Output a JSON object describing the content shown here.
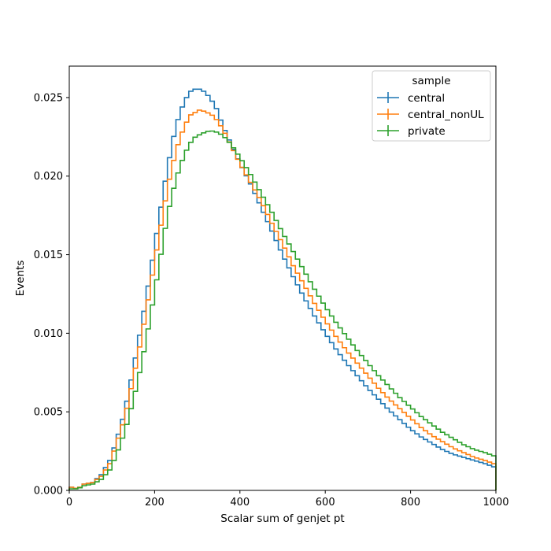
{
  "chart_data": {
    "type": "histogram-step",
    "xlabel": "Scalar sum of genjet pt",
    "ylabel": "Events",
    "xlim": [
      0,
      1000
    ],
    "ylim": [
      0,
      0.027
    ],
    "xticks": [
      0,
      200,
      400,
      600,
      800,
      1000
    ],
    "yticks": [
      0.0,
      0.005,
      0.01,
      0.015,
      0.02,
      0.025
    ],
    "ytick_labels": [
      "0.000",
      "0.005",
      "0.010",
      "0.015",
      "0.020",
      "0.025"
    ],
    "grid": false,
    "legend": {
      "title": "sample",
      "placement": "top-right"
    },
    "bin_width": 10,
    "series": [
      {
        "name": "central",
        "color": "#1f77b4",
        "knots": [
          [
            5,
            0.0002
          ],
          [
            20,
            0.0001
          ],
          [
            35,
            0.0004
          ],
          [
            55,
            0.0005
          ],
          [
            75,
            0.001
          ],
          [
            95,
            0.0019
          ],
          [
            110,
            0.0031
          ],
          [
            130,
            0.005
          ],
          [
            150,
            0.0077
          ],
          [
            170,
            0.0106
          ],
          [
            190,
            0.0138
          ],
          [
            210,
            0.0172
          ],
          [
            230,
            0.0205
          ],
          [
            250,
            0.0232
          ],
          [
            270,
            0.0248
          ],
          [
            285,
            0.0254
          ],
          [
            300,
            0.0256
          ],
          [
            315,
            0.0254
          ],
          [
            330,
            0.025
          ],
          [
            345,
            0.0243
          ],
          [
            360,
            0.0232
          ],
          [
            380,
            0.022
          ],
          [
            400,
            0.0208
          ],
          [
            425,
            0.0195
          ],
          [
            450,
            0.018
          ],
          [
            475,
            0.0165
          ],
          [
            500,
            0.015
          ],
          [
            525,
            0.0136
          ],
          [
            550,
            0.0123
          ],
          [
            575,
            0.0111
          ],
          [
            600,
            0.01
          ],
          [
            625,
            0.009
          ],
          [
            650,
            0.0081
          ],
          [
            675,
            0.0073
          ],
          [
            700,
            0.0065
          ],
          [
            725,
            0.0058
          ],
          [
            750,
            0.0051
          ],
          [
            775,
            0.0045
          ],
          [
            800,
            0.0039
          ],
          [
            825,
            0.0034
          ],
          [
            850,
            0.003
          ],
          [
            875,
            0.0026
          ],
          [
            900,
            0.0023
          ],
          [
            925,
            0.0021
          ],
          [
            950,
            0.0019
          ],
          [
            975,
            0.0017
          ],
          [
            995,
            0.0015
          ]
        ]
      },
      {
        "name": "central_nonUL",
        "color": "#ff7f0e",
        "knots": [
          [
            5,
            0.0002
          ],
          [
            20,
            0.0001
          ],
          [
            35,
            0.0004
          ],
          [
            55,
            0.0005
          ],
          [
            75,
            0.0009
          ],
          [
            95,
            0.0017
          ],
          [
            110,
            0.0029
          ],
          [
            130,
            0.0046
          ],
          [
            150,
            0.0071
          ],
          [
            170,
            0.0098
          ],
          [
            190,
            0.0129
          ],
          [
            210,
            0.0161
          ],
          [
            230,
            0.0192
          ],
          [
            250,
            0.0216
          ],
          [
            270,
            0.0232
          ],
          [
            285,
            0.0239
          ],
          [
            305,
            0.0242
          ],
          [
            320,
            0.0241
          ],
          [
            340,
            0.0238
          ],
          [
            360,
            0.023
          ],
          [
            380,
            0.0219
          ],
          [
            400,
            0.0208
          ],
          [
            425,
            0.0196
          ],
          [
            450,
            0.0184
          ],
          [
            475,
            0.017
          ],
          [
            500,
            0.0157
          ],
          [
            525,
            0.0143
          ],
          [
            550,
            0.0131
          ],
          [
            575,
            0.0119
          ],
          [
            600,
            0.0108
          ],
          [
            625,
            0.0098
          ],
          [
            650,
            0.0089
          ],
          [
            675,
            0.0081
          ],
          [
            700,
            0.0073
          ],
          [
            725,
            0.0065
          ],
          [
            750,
            0.0058
          ],
          [
            775,
            0.0052
          ],
          [
            800,
            0.0046
          ],
          [
            825,
            0.004
          ],
          [
            850,
            0.0035
          ],
          [
            875,
            0.0031
          ],
          [
            900,
            0.0027
          ],
          [
            925,
            0.0024
          ],
          [
            950,
            0.0021
          ],
          [
            975,
            0.0019
          ],
          [
            995,
            0.0017
          ]
        ]
      },
      {
        "name": "private",
        "color": "#2ca02c",
        "knots": [
          [
            5,
            0.0001
          ],
          [
            20,
            0.0001
          ],
          [
            35,
            0.0003
          ],
          [
            55,
            0.0004
          ],
          [
            75,
            0.0007
          ],
          [
            95,
            0.0013
          ],
          [
            110,
            0.0022
          ],
          [
            130,
            0.0037
          ],
          [
            150,
            0.0057
          ],
          [
            170,
            0.0081
          ],
          [
            190,
            0.011
          ],
          [
            210,
            0.0142
          ],
          [
            230,
            0.0175
          ],
          [
            250,
            0.0198
          ],
          [
            270,
            0.0214
          ],
          [
            290,
            0.0224
          ],
          [
            310,
            0.0227
          ],
          [
            330,
            0.0229
          ],
          [
            345,
            0.0228
          ],
          [
            360,
            0.0226
          ],
          [
            380,
            0.022
          ],
          [
            400,
            0.0212
          ],
          [
            425,
            0.0201
          ],
          [
            450,
            0.0189
          ],
          [
            475,
            0.0177
          ],
          [
            500,
            0.0164
          ],
          [
            525,
            0.0152
          ],
          [
            550,
            0.014
          ],
          [
            575,
            0.0128
          ],
          [
            600,
            0.0117
          ],
          [
            625,
            0.0107
          ],
          [
            650,
            0.0098
          ],
          [
            675,
            0.0089
          ],
          [
            700,
            0.0081
          ],
          [
            725,
            0.0073
          ],
          [
            750,
            0.0066
          ],
          [
            775,
            0.0059
          ],
          [
            800,
            0.0053
          ],
          [
            825,
            0.0047
          ],
          [
            850,
            0.0042
          ],
          [
            875,
            0.0037
          ],
          [
            900,
            0.0033
          ],
          [
            925,
            0.0029
          ],
          [
            950,
            0.0026
          ],
          [
            975,
            0.0024
          ],
          [
            995,
            0.0022
          ]
        ]
      }
    ]
  }
}
